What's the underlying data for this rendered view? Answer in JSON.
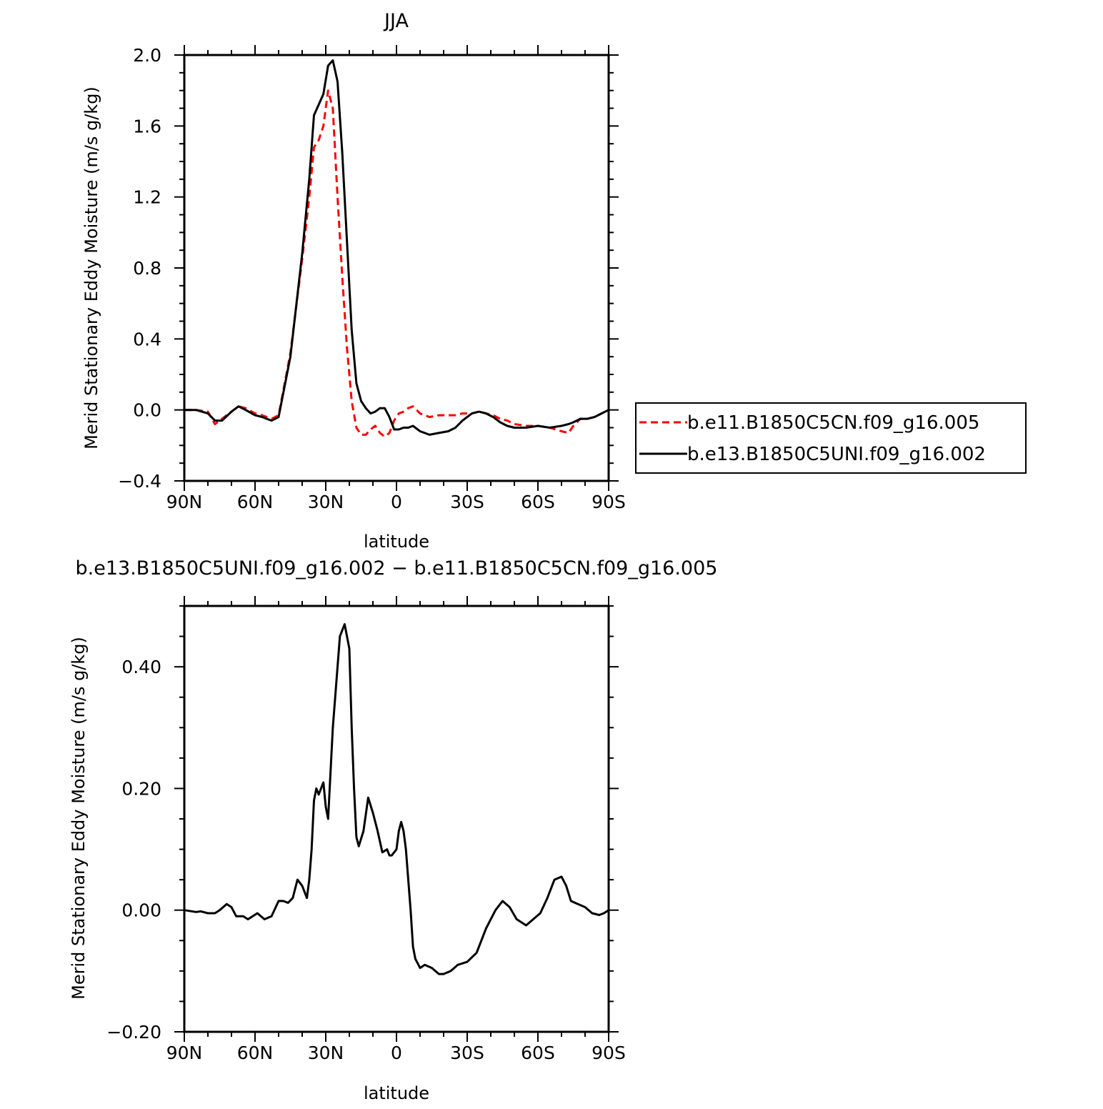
{
  "chart_data": [
    {
      "type": "line",
      "title": "JJA",
      "xlabel": "latitude",
      "ylabel": "Merid Stationary Eddy Moisture (m/s g/kg)",
      "xlim": [
        90,
        -90
      ],
      "ylim": [
        -0.4,
        2.0
      ],
      "x_ticks": [
        90,
        60,
        30,
        0,
        -30,
        -60,
        -90
      ],
      "x_tick_labels": [
        "90N",
        "60N",
        "30N",
        "0",
        "30S",
        "60S",
        "90S"
      ],
      "y_ticks": [
        -0.4,
        0.0,
        0.4,
        0.8,
        1.2,
        1.6,
        2.0
      ],
      "y_tick_labels": [
        "−0.4",
        "0.0",
        "0.4",
        "0.8",
        "1.2",
        "1.6",
        "2.0"
      ],
      "legend_position": "right",
      "series": [
        {
          "name": "b.e11.B1850C5CN.f09_g16.005",
          "color": "#ff0000",
          "dashed": true,
          "x": [
            90,
            85,
            80,
            77,
            74,
            70,
            67,
            64,
            60,
            57,
            53,
            50,
            45,
            40,
            37,
            35,
            33,
            31,
            29,
            27,
            25,
            23,
            21,
            19,
            17,
            15,
            13,
            11,
            9,
            7,
            5,
            3,
            1,
            -1,
            -3,
            -5,
            -7,
            -10,
            -14,
            -18,
            -22,
            -25,
            -28,
            -32,
            -35,
            -38,
            -41,
            -44,
            -47,
            -50,
            -55,
            -60,
            -65,
            -70,
            -73,
            -75,
            -78,
            -81,
            -84,
            -87,
            -90
          ],
          "y": [
            0.0,
            0.0,
            -0.01,
            -0.08,
            -0.05,
            -0.01,
            0.02,
            0.01,
            -0.02,
            -0.03,
            -0.05,
            -0.03,
            0.32,
            0.85,
            1.2,
            1.48,
            1.52,
            1.6,
            1.8,
            1.7,
            1.2,
            0.75,
            0.35,
            0.05,
            -0.1,
            -0.14,
            -0.14,
            -0.11,
            -0.09,
            -0.13,
            -0.15,
            -0.13,
            -0.06,
            -0.02,
            -0.01,
            0.01,
            0.02,
            -0.02,
            -0.04,
            -0.03,
            -0.03,
            -0.03,
            -0.02,
            -0.02,
            -0.01,
            -0.02,
            -0.03,
            -0.05,
            -0.06,
            -0.08,
            -0.09,
            -0.09,
            -0.1,
            -0.12,
            -0.13,
            -0.09,
            -0.05,
            -0.05,
            -0.04,
            -0.02,
            0.0
          ]
        },
        {
          "name": "b.e13.B1850C5UNI.f09_g16.002",
          "color": "#000000",
          "dashed": false,
          "x": [
            90,
            85,
            80,
            77,
            74,
            70,
            67,
            64,
            60,
            57,
            53,
            50,
            45,
            40,
            37,
            35,
            33,
            31,
            29,
            27,
            25,
            23,
            21,
            19,
            17,
            15,
            13,
            11,
            9,
            7,
            5,
            3,
            1,
            -1,
            -3,
            -5,
            -7,
            -10,
            -14,
            -18,
            -22,
            -25,
            -28,
            -32,
            -35,
            -38,
            -41,
            -44,
            -47,
            -50,
            -55,
            -60,
            -65,
            -70,
            -73,
            -75,
            -78,
            -81,
            -84,
            -87,
            -90
          ],
          "y": [
            0.0,
            0.0,
            -0.02,
            -0.06,
            -0.06,
            -0.01,
            0.02,
            0.0,
            -0.03,
            -0.04,
            -0.06,
            -0.04,
            0.3,
            0.88,
            1.3,
            1.66,
            1.72,
            1.78,
            1.94,
            1.97,
            1.85,
            1.45,
            0.95,
            0.45,
            0.15,
            0.05,
            0.01,
            -0.02,
            -0.01,
            0.01,
            0.01,
            -0.04,
            -0.11,
            -0.11,
            -0.1,
            -0.1,
            -0.09,
            -0.12,
            -0.14,
            -0.13,
            -0.12,
            -0.1,
            -0.06,
            -0.02,
            -0.01,
            -0.02,
            -0.04,
            -0.07,
            -0.09,
            -0.1,
            -0.1,
            -0.09,
            -0.1,
            -0.09,
            -0.08,
            -0.07,
            -0.05,
            -0.05,
            -0.04,
            -0.02,
            0.0
          ]
        }
      ]
    },
    {
      "type": "line",
      "title": "b.e13.B1850C5UNI.f09_g16.002 − b.e11.B1850C5CN.f09_g16.005",
      "xlabel": "latitude",
      "ylabel": "Merid Stationary Eddy Moisture (m/s g/kg)",
      "xlim": [
        90,
        -90
      ],
      "ylim": [
        -0.2,
        0.5
      ],
      "x_ticks": [
        90,
        60,
        30,
        0,
        -30,
        -60,
        -90
      ],
      "x_tick_labels": [
        "90N",
        "60N",
        "30N",
        "0",
        "30S",
        "60S",
        "90S"
      ],
      "y_ticks": [
        -0.2,
        0.0,
        0.2,
        0.4
      ],
      "y_tick_labels": [
        "−0.20",
        "0.00",
        "0.20",
        "0.40"
      ],
      "series": [
        {
          "color": "#000000",
          "dashed": false,
          "x": [
            90,
            85,
            83,
            80,
            77,
            75,
            72,
            70,
            68,
            65,
            63,
            61,
            59,
            56,
            53,
            50,
            48,
            46,
            44,
            42,
            40,
            38,
            37,
            36,
            35,
            34,
            33,
            31,
            30,
            29,
            27,
            26,
            24,
            22,
            20,
            19,
            18,
            17,
            16,
            14,
            12,
            10,
            8,
            6,
            4,
            3,
            2,
            0,
            -1,
            -2,
            -3,
            -4,
            -6,
            -7,
            -8,
            -10,
            -12,
            -15,
            -18,
            -20,
            -23,
            -26,
            -30,
            -34,
            -38,
            -42,
            -45,
            -48,
            -51,
            -55,
            -58,
            -61,
            -64,
            -67,
            -70,
            -72,
            -74,
            -77,
            -80,
            -83,
            -86,
            -88,
            -90
          ],
          "y": [
            0.0,
            -0.003,
            -0.002,
            -0.005,
            -0.005,
            0.0,
            0.01,
            0.005,
            -0.01,
            -0.01,
            -0.015,
            -0.01,
            -0.005,
            -0.015,
            -0.01,
            0.015,
            0.015,
            0.012,
            0.02,
            0.05,
            0.04,
            0.02,
            0.05,
            0.1,
            0.18,
            0.2,
            0.19,
            0.21,
            0.17,
            0.15,
            0.3,
            0.35,
            0.45,
            0.47,
            0.43,
            0.3,
            0.2,
            0.12,
            0.105,
            0.13,
            0.185,
            0.16,
            0.13,
            0.095,
            0.1,
            0.09,
            0.09,
            0.1,
            0.13,
            0.145,
            0.13,
            0.1,
            0.0,
            -0.06,
            -0.08,
            -0.095,
            -0.09,
            -0.095,
            -0.105,
            -0.105,
            -0.1,
            -0.09,
            -0.085,
            -0.07,
            -0.03,
            0.0,
            0.015,
            0.005,
            -0.015,
            -0.025,
            -0.015,
            -0.005,
            0.02,
            0.05,
            0.055,
            0.04,
            0.015,
            0.01,
            0.005,
            -0.005,
            -0.008,
            -0.005,
            0.0
          ]
        }
      ]
    }
  ]
}
